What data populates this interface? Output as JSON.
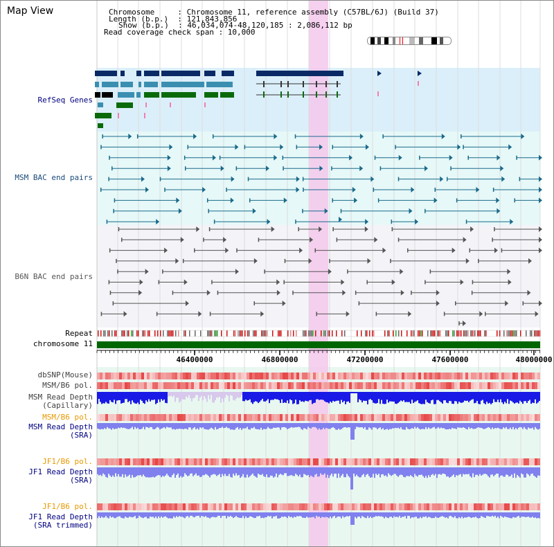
{
  "title": "Map View",
  "info": {
    "line1": "Chromosome     : Chromosome 11, reference assembly (C57BL/6J) (Build 37)",
    "line2": "Length (b.p.)  : 121,843,856",
    "line3": "Show (b.p.)  : 46,034,074-48,120,185 : 2,086,112 bp",
    "line4": "Read coverage check span : 10,000"
  },
  "tracks": {
    "refseq": "RefSeq Genes",
    "msm_bac": "MSM BAC end pairs",
    "b6n_bac": "B6N BAC end pairs",
    "repeat": "Repeat",
    "chromosome": "chromosome 11",
    "dbsnp": "dbSNP(Mouse)",
    "msm_b6_pol": "MSM/B6 pol.",
    "msm_read_depth_cap_1": "MSM Read Depth",
    "msm_read_depth_cap_2": "(Capillary)",
    "msm_b6_pol_2": "MSM/B6 pol.",
    "msm_read_depth_sra_1": "MSM Read Depth",
    "msm_read_depth_sra_2": "(SRA)",
    "jf1_b6_pol": "JF1/B6 pol.",
    "jf1_read_depth_sra_1": "JF1 Read Depth",
    "jf1_read_depth_sra_2": "(SRA)",
    "jf1_b6_pol_2": "JF1/B6 pol.",
    "jf1_read_depth_trim_1": "JF1 Read Depth",
    "jf1_read_depth_trim_2": "(SRA trimmed)"
  },
  "axis": {
    "ticks": [
      "46400000",
      "46800000",
      "47200000",
      "47600000",
      "48000000"
    ]
  },
  "colors": {
    "refseq_bg": "#dbeffa",
    "msm_bg": "#e6f8f8",
    "b6n_bg": "#f4f4f8",
    "highlight": "#f5c8ec",
    "navy_gene": "#0a2a66",
    "teal_gene": "#3a8fb0",
    "green_gene": "#0a6a0a",
    "msm_line": "#1a6a8a",
    "b6n_line": "#555555",
    "chromosome_bar": "#006600",
    "blue_depth": "#1a1ae6",
    "light_blue_depth": "#8080ee",
    "label_navy": "#000080",
    "label_orange": "#e69900",
    "label_gray": "#404040"
  }
}
